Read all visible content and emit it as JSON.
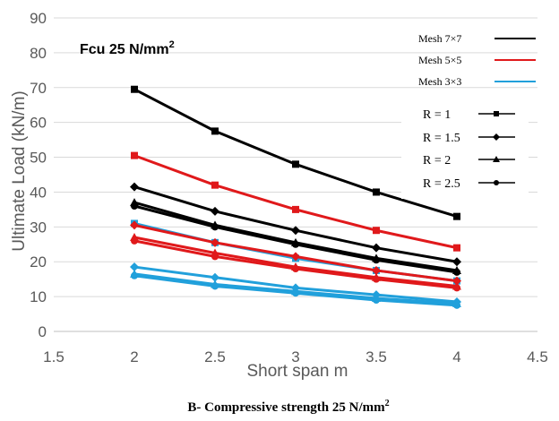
{
  "chart_data": {
    "type": "line",
    "title": "",
    "annotation": {
      "text": "Fcu 25 N/mm",
      "sup": "2"
    },
    "xlabel": "Short span m",
    "ylabel": "Ultimate Load (kN/m)",
    "xlim": [
      1.5,
      4.5
    ],
    "ylim": [
      0,
      90
    ],
    "xticks": [
      1.5,
      2,
      2.5,
      3,
      3.5,
      4,
      4.5
    ],
    "yticks": [
      0,
      10,
      20,
      30,
      40,
      50,
      60,
      70,
      80,
      90
    ],
    "grid": "horizontal",
    "x": [
      2,
      2.5,
      3,
      3.5,
      4
    ],
    "color_legend": [
      {
        "label": "Mesh 7×7",
        "color": "#000000"
      },
      {
        "label": "Mesh 5×5",
        "color": "#e0191b"
      },
      {
        "label": "Mesh 3×3",
        "color": "#21a0db"
      }
    ],
    "marker_legend": [
      {
        "label": "R = 1",
        "marker": "square"
      },
      {
        "label": "R = 1.5",
        "marker": "diamond"
      },
      {
        "label": "R = 2",
        "marker": "triangle"
      },
      {
        "label": "R = 2.5",
        "marker": "circle"
      }
    ],
    "series": [
      {
        "mesh": "Mesh 7×7",
        "ratio": "R = 1",
        "color": "#000000",
        "marker": "square",
        "values": [
          69.5,
          57.5,
          48,
          40,
          33
        ]
      },
      {
        "mesh": "Mesh 7×7",
        "ratio": "R = 1.5",
        "color": "#000000",
        "marker": "diamond",
        "values": [
          41.5,
          34.5,
          29,
          24,
          20
        ]
      },
      {
        "mesh": "Mesh 7×7",
        "ratio": "R = 2",
        "color": "#000000",
        "marker": "triangle",
        "values": [
          37,
          30.5,
          25.5,
          21,
          17.5
        ]
      },
      {
        "mesh": "Mesh 7×7",
        "ratio": "R = 2.5",
        "color": "#000000",
        "marker": "circle",
        "values": [
          36,
          30,
          25,
          20.5,
          17
        ]
      },
      {
        "mesh": "Mesh 5×5",
        "ratio": "R = 1",
        "color": "#e0191b",
        "marker": "square",
        "values": [
          50.5,
          42,
          35,
          29,
          24
        ]
      },
      {
        "mesh": "Mesh 5×5",
        "ratio": "R = 1.5",
        "color": "#e0191b",
        "marker": "diamond",
        "values": [
          30.5,
          25.5,
          21.5,
          17.5,
          14.5
        ]
      },
      {
        "mesh": "Mesh 5×5",
        "ratio": "R = 2",
        "color": "#e0191b",
        "marker": "triangle",
        "values": [
          27,
          22.5,
          18.5,
          15.5,
          13
        ]
      },
      {
        "mesh": "Mesh 5×5",
        "ratio": "R = 2.5",
        "color": "#e0191b",
        "marker": "circle",
        "values": [
          26,
          21.5,
          18,
          15,
          12.5
        ]
      },
      {
        "mesh": "Mesh 3×3",
        "ratio": "R = 1",
        "color": "#21a0db",
        "marker": "square",
        "values": [
          31,
          25.5,
          21,
          17.5,
          14.5
        ]
      },
      {
        "mesh": "Mesh 3×3",
        "ratio": "R = 1.5",
        "color": "#21a0db",
        "marker": "diamond",
        "values": [
          18.5,
          15.5,
          12.5,
          10.5,
          8.5
        ]
      },
      {
        "mesh": "Mesh 3×3",
        "ratio": "R = 2",
        "color": "#21a0db",
        "marker": "triangle",
        "values": [
          16.5,
          13.5,
          11.5,
          9.5,
          8
        ]
      },
      {
        "mesh": "Mesh 3×3",
        "ratio": "R = 2.5",
        "color": "#21a0db",
        "marker": "circle",
        "values": [
          16,
          13,
          11,
          9,
          7.5
        ]
      }
    ],
    "caption": {
      "text": "B- Compressive strength 25 N/mm",
      "sup": "2"
    }
  }
}
